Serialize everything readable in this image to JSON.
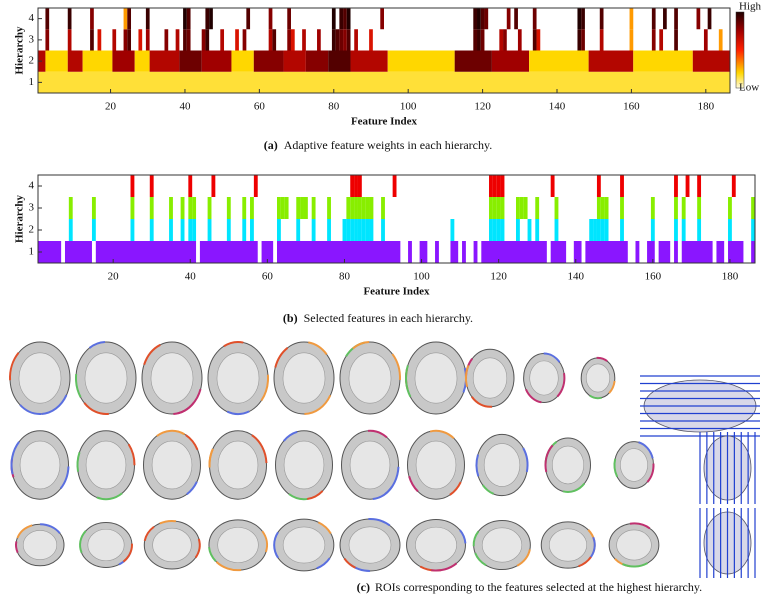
{
  "chart_data": [
    {
      "type": "heatmap",
      "caption_label": "(a)",
      "caption": "Adaptive feature weights in each hierarchy.",
      "xlabel": "Feature Index",
      "ylabel": "Hierarchy",
      "xlim": [
        0.5,
        186.5
      ],
      "xticks": [
        20,
        40,
        60,
        80,
        100,
        120,
        140,
        160,
        180
      ],
      "ylim": [
        0.5,
        4.5
      ],
      "yticks": [
        1,
        2,
        3,
        4
      ],
      "colorbar": {
        "high": "High",
        "low": "Low"
      },
      "rows": [
        {
          "hierarchy": 1,
          "runs": [
            [
              1,
              186
            ]
          ],
          "values": [
            0.15
          ]
        },
        {
          "hierarchy": 2,
          "runs": [
            [
              1,
              2
            ],
            [
              3,
              8
            ],
            [
              9,
              12
            ],
            [
              13,
              20
            ],
            [
              21,
              26
            ],
            [
              27,
              30
            ],
            [
              31,
              38
            ],
            [
              39,
              44
            ],
            [
              45,
              52
            ],
            [
              53,
              58
            ],
            [
              59,
              66
            ],
            [
              67,
              72
            ],
            [
              73,
              78
            ],
            [
              79,
              84
            ],
            [
              85,
              94
            ],
            [
              95,
              112
            ],
            [
              113,
              122
            ],
            [
              123,
              132
            ],
            [
              133,
              148
            ],
            [
              149,
              160
            ],
            [
              161,
              176
            ],
            [
              177,
              186
            ]
          ],
          "values": [
            0.7,
            0.2,
            0.7,
            0.2,
            0.75,
            0.2,
            0.7,
            0.85,
            0.75,
            0.2,
            0.8,
            0.7,
            0.8,
            0.9,
            0.7,
            0.2,
            0.85,
            0.75,
            0.2,
            0.7,
            0.2,
            0.7
          ]
        },
        {
          "hierarchy": 3,
          "x": [
            3,
            9,
            15,
            17,
            21,
            24,
            25,
            28,
            30,
            35,
            38,
            40,
            41,
            45,
            46,
            50,
            54,
            56,
            63,
            64,
            68,
            69,
            72,
            76,
            80,
            81,
            82,
            83,
            84,
            86,
            90,
            118,
            119,
            120,
            125,
            126,
            130,
            134,
            135,
            146,
            147,
            152,
            160,
            166,
            168,
            172,
            180,
            184
          ],
          "values": [
            0.8,
            0.7,
            0.9,
            0.6,
            0.7,
            0.8,
            0.9,
            0.6,
            0.75,
            0.8,
            0.7,
            0.9,
            0.85,
            0.8,
            0.95,
            0.7,
            0.6,
            0.8,
            0.7,
            0.9,
            0.8,
            0.6,
            0.7,
            0.75,
            0.95,
            0.9,
            0.85,
            0.8,
            0.9,
            0.7,
            0.6,
            0.9,
            0.95,
            0.85,
            0.7,
            0.8,
            0.75,
            0.9,
            0.6,
            0.95,
            0.85,
            0.7,
            0.3,
            0.8,
            0.7,
            0.9,
            0.75,
            0.3
          ]
        },
        {
          "hierarchy": 4,
          "x": [
            3,
            9,
            15,
            24,
            25,
            30,
            40,
            41,
            46,
            47,
            57,
            63,
            68,
            80,
            82,
            83,
            84,
            93,
            118,
            119,
            120,
            121,
            127,
            129,
            134,
            146,
            147,
            152,
            160,
            166,
            169,
            172,
            178,
            181
          ],
          "values": [
            0.9,
            0.95,
            0.8,
            0.3,
            0.9,
            0.95,
            1,
            0.9,
            0.95,
            1,
            0.9,
            0.8,
            0.85,
            1,
            0.95,
            0.9,
            1,
            0.8,
            0.95,
            1,
            0.9,
            0.85,
            0.8,
            0.9,
            0.85,
            1,
            0.95,
            0.9,
            0.3,
            0.9,
            0.95,
            0.9,
            0.8,
            0.95
          ]
        }
      ]
    },
    {
      "type": "selection",
      "caption_label": "(b)",
      "caption": "Selected features in each hierarchy.",
      "xlabel": "Feature Index",
      "ylabel": "Hierarchy",
      "xlim": [
        0.5,
        186.5
      ],
      "xticks": [
        20,
        40,
        60,
        80,
        100,
        120,
        140,
        160,
        180
      ],
      "ylim": [
        0.5,
        4.5
      ],
      "yticks": [
        1,
        2,
        3,
        4
      ],
      "rows": [
        {
          "hierarchy": 1,
          "color": "#8a16ff",
          "runs": [
            [
              1,
              6
            ],
            [
              8,
              14
            ],
            [
              16,
              41
            ],
            [
              43,
              57
            ],
            [
              59,
              61
            ],
            [
              63,
              94
            ],
            [
              97,
              97
            ],
            [
              100,
              101
            ],
            [
              104,
              104
            ],
            [
              108,
              109
            ],
            [
              111,
              111
            ],
            [
              114,
              114
            ],
            [
              116,
              132
            ],
            [
              134,
              137
            ],
            [
              140,
              141
            ],
            [
              143,
              153
            ],
            [
              156,
              156
            ],
            [
              159,
              160
            ],
            [
              162,
              164
            ],
            [
              166,
              166
            ],
            [
              168,
              175
            ],
            [
              177,
              178
            ],
            [
              180,
              183
            ],
            [
              186,
              186
            ]
          ]
        },
        {
          "hierarchy": 2,
          "color": "#00e5ff",
          "x": [
            9,
            15,
            25,
            30,
            35,
            38,
            40,
            41,
            45,
            50,
            54,
            56,
            63,
            68,
            72,
            76,
            80,
            81,
            82,
            83,
            84,
            85,
            86,
            87,
            90,
            108,
            118,
            119,
            120,
            121,
            125,
            128,
            130,
            135,
            144,
            145,
            146,
            147,
            148,
            152,
            160,
            166,
            168,
            172,
            180,
            186
          ]
        },
        {
          "hierarchy": 3,
          "color": "#88ee00",
          "x": [
            9,
            15,
            25,
            30,
            35,
            38,
            40,
            41,
            45,
            50,
            54,
            56,
            63,
            64,
            65,
            68,
            69,
            70,
            72,
            76,
            81,
            82,
            83,
            84,
            85,
            86,
            87,
            90,
            118,
            119,
            120,
            121,
            125,
            126,
            127,
            130,
            135,
            146,
            147,
            148,
            152,
            160,
            166,
            168,
            172,
            180,
            186
          ]
        },
        {
          "hierarchy": 4,
          "color": "#ee0000",
          "x": [
            25,
            30,
            40,
            46,
            57,
            82,
            83,
            84,
            93,
            118,
            119,
            120,
            121,
            134,
            146,
            152,
            166,
            169,
            172,
            181
          ]
        }
      ]
    }
  ],
  "roi_panel": {
    "caption_label": "(c)",
    "caption": "ROIs corresponding to the features selected at the highest hierarchy."
  }
}
